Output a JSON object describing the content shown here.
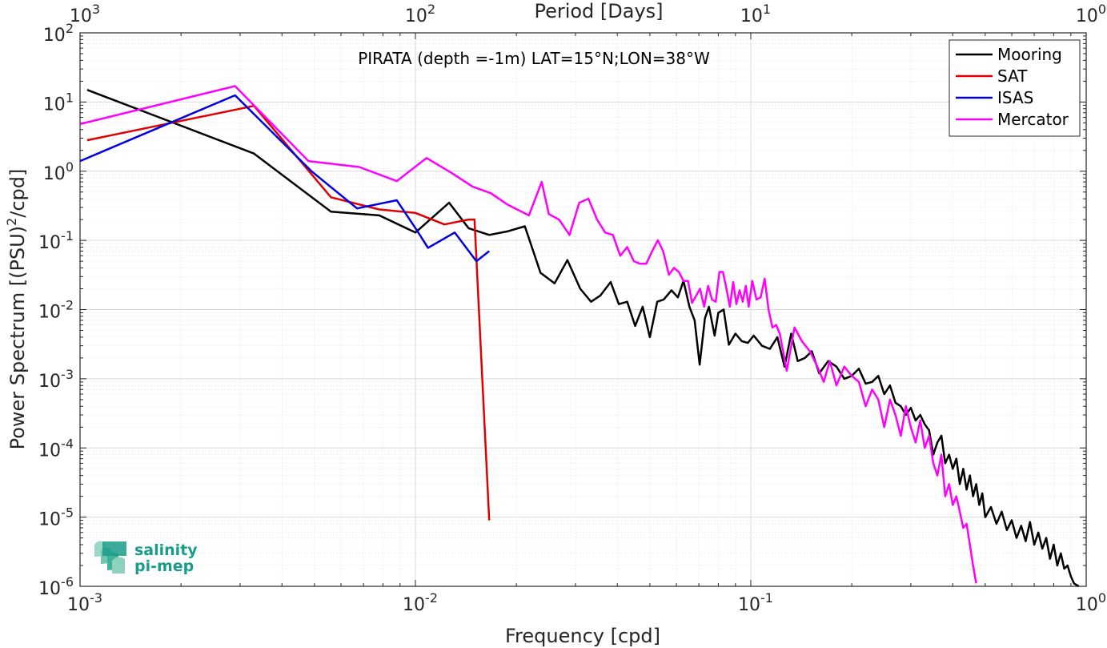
{
  "chart_data": {
    "type": "line",
    "title": "PIRATA (depth =-1m) LAT=15°N;LON=38°W",
    "xlabel": "Frequency [cpd]",
    "ylabel_main": "Power Spectrum [(PSU)",
    "ylabel_sup": "2",
    "ylabel_tail": "/cpd]",
    "x2label": "Period [Days]",
    "xscale": "log",
    "yscale": "log",
    "xlim": [
      0.001,
      1
    ],
    "ylim": [
      1e-06,
      100
    ],
    "grid": true,
    "legend_position": "top-right",
    "x_ticks": [
      {
        "value": 0.001,
        "base": "10",
        "exp": "-3"
      },
      {
        "value": 0.01,
        "base": "10",
        "exp": "-2"
      },
      {
        "value": 0.1,
        "base": "10",
        "exp": "-1"
      },
      {
        "value": 1,
        "base": "10",
        "exp": "0"
      }
    ],
    "y_ticks": [
      {
        "value": 1e-06,
        "base": "10",
        "exp": "-6"
      },
      {
        "value": 1e-05,
        "base": "10",
        "exp": "-5"
      },
      {
        "value": 0.0001,
        "base": "10",
        "exp": "-4"
      },
      {
        "value": 0.001,
        "base": "10",
        "exp": "-3"
      },
      {
        "value": 0.01,
        "base": "10",
        "exp": "-2"
      },
      {
        "value": 0.1,
        "base": "10",
        "exp": "-1"
      },
      {
        "value": 1,
        "base": "10",
        "exp": "0"
      },
      {
        "value": 10,
        "base": "10",
        "exp": "1"
      },
      {
        "value": 100,
        "base": "10",
        "exp": "2"
      }
    ],
    "top_ticks": [
      {
        "value": 1000,
        "base": "10",
        "exp": "3"
      },
      {
        "value": 100,
        "base": "10",
        "exp": "2"
      },
      {
        "value": 10,
        "base": "10",
        "exp": "1"
      },
      {
        "value": 1,
        "base": "10",
        "exp": "0"
      }
    ],
    "series": [
      {
        "name": "Mooring",
        "color": "#000000",
        "x": [
          0.00105,
          0.0033,
          0.0056,
          0.0078,
          0.01,
          0.0126,
          0.0144,
          0.0166,
          0.0188,
          0.0212,
          0.0236,
          0.026,
          0.0284,
          0.031,
          0.0334,
          0.0356,
          0.0382,
          0.0404,
          0.0428,
          0.0452,
          0.0476,
          0.05,
          0.0526,
          0.055,
          0.058,
          0.0606,
          0.063,
          0.0656,
          0.068,
          0.0704,
          0.073,
          0.075,
          0.078,
          0.08,
          0.083,
          0.086,
          0.09,
          0.094,
          0.098,
          0.102,
          0.108,
          0.114,
          0.12,
          0.126,
          0.132,
          0.138,
          0.145,
          0.152,
          0.16,
          0.17,
          0.18,
          0.19,
          0.2,
          0.21,
          0.22,
          0.23,
          0.24,
          0.25,
          0.26,
          0.27,
          0.28,
          0.29,
          0.3,
          0.31,
          0.32,
          0.33,
          0.34,
          0.35,
          0.36,
          0.37,
          0.38,
          0.39,
          0.4,
          0.41,
          0.42,
          0.43,
          0.44,
          0.45,
          0.46,
          0.47,
          0.48,
          0.49,
          0.5,
          0.52,
          0.54,
          0.56,
          0.58,
          0.6,
          0.62,
          0.64,
          0.66,
          0.68,
          0.7,
          0.72,
          0.74,
          0.76,
          0.78,
          0.8,
          0.82,
          0.84,
          0.86,
          0.88,
          0.9,
          0.92,
          0.95
        ],
        "y": [
          15,
          1.8,
          0.26,
          0.23,
          0.13,
          0.35,
          0.15,
          0.12,
          0.135,
          0.16,
          0.034,
          0.024,
          0.052,
          0.02,
          0.013,
          0.016,
          0.025,
          0.012,
          0.013,
          0.0058,
          0.011,
          0.004,
          0.013,
          0.014,
          0.019,
          0.015,
          0.026,
          0.011,
          0.007,
          0.0016,
          0.0075,
          0.011,
          0.0042,
          0.009,
          0.01,
          0.0031,
          0.0045,
          0.0035,
          0.0033,
          0.0042,
          0.003,
          0.0027,
          0.004,
          0.0015,
          0.0045,
          0.0018,
          0.002,
          0.0025,
          0.0012,
          0.0018,
          0.0015,
          0.001,
          0.0011,
          0.0014,
          0.00085,
          0.0009,
          0.0011,
          0.0006,
          0.0008,
          0.00045,
          0.0004,
          0.0003,
          0.00038,
          0.00025,
          0.0003,
          0.00022,
          0.00018,
          8e-05,
          0.00012,
          0.00015,
          6e-05,
          8e-05,
          5e-05,
          7e-05,
          3e-05,
          5e-05,
          2.5e-05,
          4e-05,
          2e-05,
          3e-05,
          1.5e-05,
          2.2e-05,
          1e-05,
          1.4e-05,
          8e-06,
          1.2e-05,
          6.5e-06,
          9e-06,
          5e-06,
          7.5e-06,
          4.5e-06,
          8.5e-06,
          4e-06,
          6e-06,
          3.5e-06,
          5e-06,
          2.5e-06,
          4e-06,
          2e-06,
          3e-06,
          1.8e-06,
          2e-06,
          1.4e-06,
          1.1e-06,
          1e-06
        ]
      },
      {
        "name": "SAT",
        "color": "#e00000",
        "x": [
          0.00105,
          0.0033,
          0.0056,
          0.0078,
          0.01,
          0.0122,
          0.0144,
          0.015,
          0.0166
        ],
        "y": [
          2.8,
          8.8,
          0.42,
          0.28,
          0.25,
          0.17,
          0.2,
          0.2,
          9e-06
        ]
      },
      {
        "name": "ISAS",
        "color": "#0000e0",
        "x": [
          0.001,
          0.0029,
          0.0049,
          0.0067,
          0.0088,
          0.0101,
          0.0109,
          0.0131,
          0.0152,
          0.0166
        ],
        "y": [
          1.4,
          12.5,
          1.0,
          0.29,
          0.38,
          0.14,
          0.078,
          0.13,
          0.05,
          0.07
        ]
      },
      {
        "name": "Mercator",
        "color": "#ff00ff",
        "x": [
          0.001,
          0.0029,
          0.0048,
          0.0068,
          0.0088,
          0.0108,
          0.0128,
          0.0148,
          0.0168,
          0.0188,
          0.0218,
          0.0238,
          0.025,
          0.0268,
          0.0288,
          0.0308,
          0.0328,
          0.0348,
          0.0368,
          0.0388,
          0.0408,
          0.0428,
          0.0448,
          0.0468,
          0.0488,
          0.0508,
          0.0528,
          0.0548,
          0.057,
          0.059,
          0.061,
          0.063,
          0.065,
          0.0668,
          0.0688,
          0.0706,
          0.0726,
          0.0746,
          0.0766,
          0.0786,
          0.0806,
          0.0826,
          0.0846,
          0.0866,
          0.0886,
          0.0906,
          0.0926,
          0.0946,
          0.0966,
          0.0986,
          0.101,
          0.104,
          0.107,
          0.11,
          0.113,
          0.116,
          0.119,
          0.122,
          0.128,
          0.135,
          0.142,
          0.15,
          0.158,
          0.165,
          0.172,
          0.18,
          0.19,
          0.2,
          0.21,
          0.22,
          0.23,
          0.24,
          0.25,
          0.26,
          0.27,
          0.28,
          0.29,
          0.3,
          0.31,
          0.32,
          0.33,
          0.34,
          0.35,
          0.36,
          0.37,
          0.38,
          0.39,
          0.4,
          0.41,
          0.42,
          0.43,
          0.44,
          0.45,
          0.46,
          0.47
        ],
        "y": [
          4.8,
          17,
          1.4,
          1.15,
          0.72,
          1.55,
          0.95,
          0.6,
          0.48,
          0.33,
          0.23,
          0.7,
          0.24,
          0.2,
          0.12,
          0.35,
          0.4,
          0.2,
          0.13,
          0.12,
          0.06,
          0.08,
          0.05,
          0.046,
          0.046,
          0.07,
          0.1,
          0.07,
          0.032,
          0.04,
          0.035,
          0.026,
          0.026,
          0.0125,
          0.016,
          0.02,
          0.011,
          0.022,
          0.014,
          0.013,
          0.035,
          0.035,
          0.02,
          0.011,
          0.025,
          0.012,
          0.019,
          0.013,
          0.022,
          0.011,
          0.026,
          0.014,
          0.015,
          0.028,
          0.01,
          0.0055,
          0.006,
          0.0045,
          0.0013,
          0.0055,
          0.0035,
          0.0025,
          0.0015,
          0.0009,
          0.0018,
          0.0008,
          0.0015,
          0.0011,
          0.0009,
          0.0004,
          0.0007,
          0.0005,
          0.0002,
          0.0005,
          0.0003,
          0.00015,
          0.0004,
          0.0002,
          0.00012,
          0.00025,
          0.0001,
          0.00015,
          6e-05,
          4e-05,
          8e-05,
          2e-05,
          3e-05,
          1.5e-05,
          2e-05,
          1.2e-05,
          7e-06,
          8e-06,
          4e-06,
          2e-06,
          1.1e-06
        ]
      }
    ]
  },
  "logo": {
    "line1": "salinity",
    "line2": "pi-mep"
  }
}
